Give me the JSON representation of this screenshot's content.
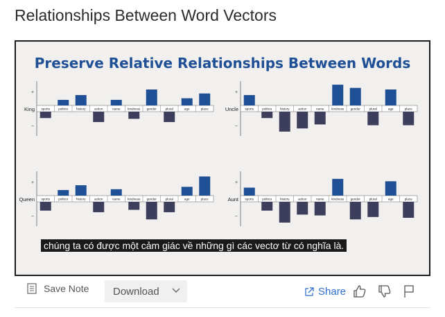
{
  "page": {
    "title": "Relationships Between Word Vectors"
  },
  "slide": {
    "title": "Preserve Relative Relationships Between Words",
    "caption": "chúng ta có được một cảm giác về những gì các vectơ từ có nghĩa là.",
    "plus_sign": "+",
    "minus_sign": "–"
  },
  "chart_data": [
    {
      "type": "bar",
      "label": "King",
      "categories": [
        "sports",
        "politics",
        "history",
        "action",
        "name",
        "kindness",
        "gender",
        "plural",
        "age",
        "place"
      ],
      "values": [
        -0.4,
        0.35,
        0.65,
        -0.65,
        0.35,
        -0.45,
        1.0,
        -0.65,
        0.45,
        0.75
      ]
    },
    {
      "type": "bar",
      "label": "Uncle",
      "categories": [
        "sports",
        "politics",
        "history",
        "action",
        "name",
        "kindness",
        "gender",
        "plural",
        "age",
        "place"
      ],
      "values": [
        0.65,
        -0.4,
        -1.25,
        -1.05,
        -0.8,
        1.3,
        1.1,
        -0.85,
        1.0,
        -0.85
      ]
    },
    {
      "type": "bar",
      "label": "Queen",
      "categories": [
        "sports",
        "politics",
        "history",
        "action",
        "name",
        "kindness",
        "gender",
        "plural",
        "age",
        "place"
      ],
      "values": [
        -0.55,
        0.35,
        0.65,
        -0.65,
        0.4,
        -0.5,
        -1.1,
        -0.65,
        0.55,
        1.2
      ]
    },
    {
      "type": "bar",
      "label": "Aunt",
      "categories": [
        "sports",
        "politics",
        "history",
        "action",
        "name",
        "kindness",
        "gender",
        "plural",
        "age",
        "place"
      ],
      "values": [
        0.5,
        -0.55,
        -1.3,
        -0.8,
        -0.85,
        1.05,
        -1.1,
        -0.95,
        0.9,
        -1.0
      ]
    }
  ],
  "toolbar": {
    "save_note": "Save Note",
    "download": "Download",
    "share": "Share"
  },
  "icons": {
    "note": "note-icon",
    "chevron": "chevron-down-icon",
    "share": "share-icon",
    "like": "thumbs-up-icon",
    "dislike": "thumbs-down-icon",
    "flag": "flag-icon"
  },
  "colors": {
    "positive_bar": "#1f4f95",
    "negative_bar": "#3d3d5c",
    "title": "#1f4f95",
    "link": "#2f6fcf"
  }
}
